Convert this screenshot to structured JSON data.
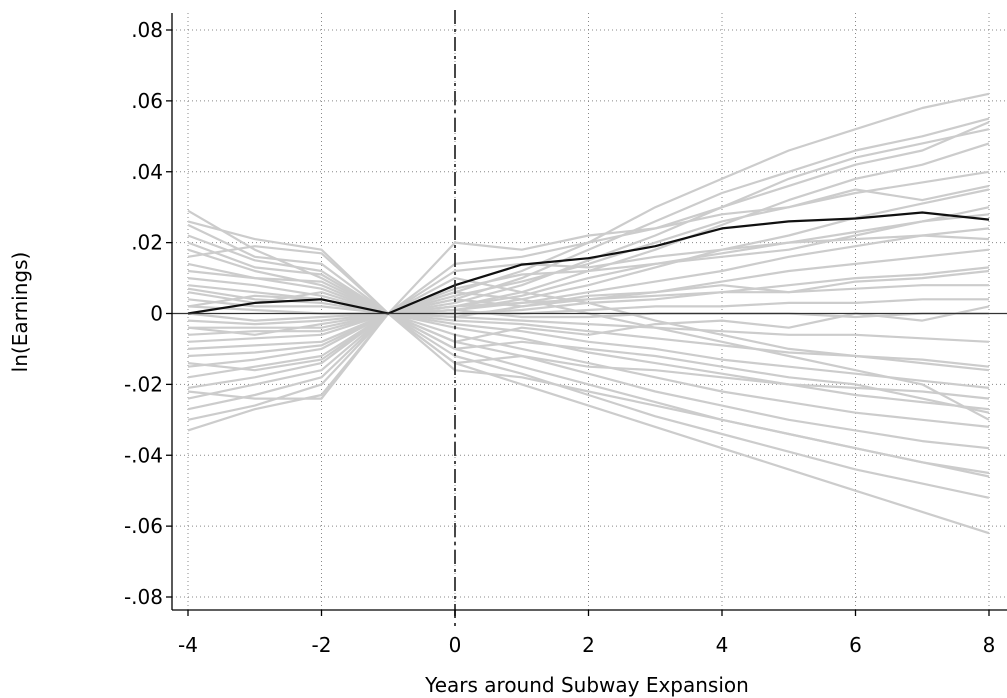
{
  "chart_data": {
    "type": "line",
    "title": "",
    "xlabel": "Years around Subway Expansion",
    "ylabel": "ln(Earnings)",
    "xlim": [
      -4,
      8
    ],
    "ylim": [
      -0.08,
      0.08
    ],
    "x_ticks": [
      -4,
      -2,
      0,
      2,
      4,
      6,
      8
    ],
    "x_tick_labels": [
      "-4",
      "-2",
      "0",
      "2",
      "4",
      "6",
      "8"
    ],
    "y_ticks": [
      0.08,
      0.06,
      0.04,
      0.02,
      0,
      -0.02,
      -0.04,
      -0.06,
      -0.08
    ],
    "y_tick_labels": [
      ".08",
      ".06",
      ".04",
      ".02",
      "0",
      "-.02",
      "-.04",
      "-.06",
      "-.08"
    ],
    "grid": true,
    "event_line_x": 0,
    "reference_line_y": 0,
    "x": [
      -4,
      -3,
      -2,
      -1,
      0,
      1,
      2,
      3,
      4,
      5,
      6,
      7,
      8
    ],
    "colors": {
      "main": "#111111",
      "placebo": "#cccccc",
      "grid": "#888888"
    },
    "series": [
      {
        "role": "main",
        "values": [
          0.0,
          0.003,
          0.004,
          0.0,
          0.008,
          0.0138,
          0.0156,
          0.019,
          0.024,
          0.026,
          0.0268,
          0.0285,
          0.0265
        ]
      },
      {
        "role": "placebo",
        "values": [
          0.029,
          0.018,
          0.01,
          0,
          0.006,
          0.012,
          0.02,
          0.03,
          0.038,
          0.046,
          0.052,
          0.058,
          0.062
        ]
      },
      {
        "role": "placebo",
        "values": [
          0.026,
          0.021,
          0.018,
          0,
          0.004,
          0.01,
          0.018,
          0.026,
          0.034,
          0.04,
          0.046,
          0.05,
          0.055
        ]
      },
      {
        "role": "placebo",
        "values": [
          0.022,
          0.015,
          0.012,
          0,
          0.003,
          0.008,
          0.015,
          0.022,
          0.03,
          0.038,
          0.044,
          0.048,
          0.052
        ]
      },
      {
        "role": "placebo",
        "values": [
          0.018,
          0.012,
          0.008,
          0,
          0.002,
          0.006,
          0.012,
          0.018,
          0.025,
          0.032,
          0.038,
          0.042,
          0.048
        ]
      },
      {
        "role": "placebo",
        "values": [
          0.014,
          0.01,
          0.007,
          0,
          0.005,
          0.009,
          0.014,
          0.02,
          0.026,
          0.03,
          0.034,
          0.037,
          0.04
        ]
      },
      {
        "role": "placebo",
        "values": [
          0.01,
          0.008,
          0.005,
          0,
          0.001,
          0.004,
          0.008,
          0.013,
          0.018,
          0.022,
          0.027,
          0.031,
          0.035
        ]
      },
      {
        "role": "placebo",
        "values": [
          0.007,
          0.004,
          0.003,
          0,
          0.002,
          0.005,
          0.01,
          0.014,
          0.017,
          0.02,
          0.023,
          0.026,
          0.03
        ]
      },
      {
        "role": "placebo",
        "values": [
          0.004,
          0.002,
          0.002,
          0,
          0.001,
          0.003,
          0.006,
          0.009,
          0.012,
          0.016,
          0.019,
          0.022,
          0.024
        ]
      },
      {
        "role": "placebo",
        "values": [
          0.002,
          0.001,
          0.0,
          0,
          -0.001,
          0.002,
          0.004,
          0.006,
          0.009,
          0.012,
          0.014,
          0.016,
          0.018
        ]
      },
      {
        "role": "placebo",
        "values": [
          0.0,
          -0.002,
          -0.001,
          0,
          0.0,
          0.001,
          0.003,
          0.004,
          0.006,
          0.008,
          0.01,
          0.011,
          0.013
        ]
      },
      {
        "role": "placebo",
        "values": [
          -0.002,
          -0.003,
          -0.002,
          0,
          0.002,
          0.003,
          0.004,
          0.005,
          0.006,
          0.006,
          0.007,
          0.008,
          0.008
        ]
      },
      {
        "role": "placebo",
        "values": [
          -0.004,
          -0.004,
          -0.004,
          0,
          0.0,
          0.0,
          0.001,
          0.002,
          0.002,
          0.003,
          0.003,
          0.004,
          0.004
        ]
      },
      {
        "role": "placebo",
        "values": [
          -0.006,
          -0.005,
          -0.005,
          0,
          0.001,
          -0.001,
          -0.001,
          0.0,
          0.0,
          0.0,
          -0.001,
          0.0,
          0.0
        ]
      },
      {
        "role": "placebo",
        "values": [
          -0.008,
          -0.007,
          -0.006,
          0,
          -0.001,
          -0.002,
          -0.003,
          -0.004,
          -0.005,
          -0.006,
          -0.006,
          -0.007,
          -0.008
        ]
      },
      {
        "role": "placebo",
        "values": [
          -0.01,
          -0.009,
          -0.008,
          0,
          -0.002,
          -0.003,
          -0.005,
          -0.007,
          -0.009,
          -0.011,
          -0.012,
          -0.013,
          -0.015
        ]
      },
      {
        "role": "placebo",
        "values": [
          -0.012,
          -0.011,
          -0.009,
          0,
          -0.003,
          -0.005,
          -0.008,
          -0.01,
          -0.013,
          -0.015,
          -0.017,
          -0.019,
          -0.021
        ]
      },
      {
        "role": "placebo",
        "values": [
          -0.015,
          -0.013,
          -0.01,
          0,
          -0.004,
          -0.007,
          -0.011,
          -0.014,
          -0.017,
          -0.02,
          -0.023,
          -0.025,
          -0.027
        ]
      },
      {
        "role": "placebo",
        "values": [
          -0.018,
          -0.015,
          -0.012,
          0,
          -0.006,
          -0.01,
          -0.014,
          -0.018,
          -0.022,
          -0.025,
          -0.028,
          -0.03,
          -0.032
        ]
      },
      {
        "role": "placebo",
        "values": [
          -0.021,
          -0.018,
          -0.014,
          0,
          -0.008,
          -0.012,
          -0.017,
          -0.022,
          -0.026,
          -0.03,
          -0.033,
          -0.036,
          -0.038
        ]
      },
      {
        "role": "placebo",
        "values": [
          -0.024,
          -0.02,
          -0.016,
          0,
          -0.01,
          -0.015,
          -0.02,
          -0.025,
          -0.03,
          -0.034,
          -0.038,
          -0.042,
          -0.045
        ]
      },
      {
        "role": "placebo",
        "values": [
          -0.027,
          -0.023,
          -0.018,
          0,
          -0.012,
          -0.017,
          -0.023,
          -0.029,
          -0.034,
          -0.039,
          -0.044,
          -0.048,
          -0.052
        ]
      },
      {
        "role": "placebo",
        "values": [
          -0.03,
          -0.026,
          -0.02,
          0,
          -0.014,
          -0.02,
          -0.026,
          -0.032,
          -0.038,
          -0.044,
          -0.05,
          -0.056,
          -0.062
        ]
      },
      {
        "role": "placebo",
        "values": [
          -0.033,
          -0.027,
          -0.023,
          0,
          -0.016,
          -0.018,
          -0.022,
          -0.026,
          -0.03,
          -0.034,
          -0.038,
          -0.042,
          -0.046
        ]
      },
      {
        "role": "placebo",
        "values": [
          0.025,
          0.016,
          0.014,
          0,
          0.02,
          0.018,
          0.022,
          0.024,
          0.028,
          0.03,
          0.035,
          0.032,
          0.036
        ]
      },
      {
        "role": "placebo",
        "values": [
          0.02,
          0.013,
          0.011,
          0,
          0.012,
          0.014,
          0.013,
          0.016,
          0.018,
          0.02,
          0.021,
          0.022,
          0.021
        ]
      },
      {
        "role": "placebo",
        "values": [
          0.012,
          0.01,
          0.009,
          0,
          -0.008,
          -0.004,
          -0.006,
          -0.003,
          -0.002,
          -0.004,
          0.0,
          -0.002,
          0.002
        ]
      },
      {
        "role": "placebo",
        "values": [
          0.006,
          0.003,
          0.006,
          0,
          -0.014,
          -0.012,
          -0.015,
          -0.016,
          -0.018,
          -0.02,
          -0.021,
          -0.022,
          -0.024
        ]
      },
      {
        "role": "placebo",
        "values": [
          -0.014,
          -0.016,
          -0.013,
          0,
          0.01,
          0.006,
          0.003,
          -0.002,
          -0.006,
          -0.01,
          -0.012,
          -0.014,
          -0.016
        ]
      },
      {
        "role": "placebo",
        "values": [
          -0.022,
          -0.024,
          -0.024,
          0,
          0.006,
          0.004,
          0.0,
          -0.004,
          -0.008,
          -0.012,
          -0.016,
          -0.02,
          -0.03
        ]
      },
      {
        "role": "placebo",
        "values": [
          0.016,
          0.019,
          0.017,
          0,
          0.014,
          0.016,
          0.02,
          0.024,
          0.03,
          0.036,
          0.042,
          0.046,
          0.054
        ]
      },
      {
        "role": "placebo",
        "values": [
          0.008,
          0.006,
          0.004,
          0,
          0.004,
          0.002,
          0.005,
          0.006,
          0.008,
          0.006,
          0.009,
          0.01,
          0.012
        ]
      },
      {
        "role": "placebo",
        "values": [
          -0.004,
          -0.006,
          -0.003,
          0,
          -0.01,
          -0.008,
          -0.01,
          -0.012,
          -0.015,
          -0.018,
          -0.02,
          -0.024,
          -0.028
        ]
      },
      {
        "role": "placebo",
        "values": [
          0.002,
          0.005,
          0.004,
          0,
          0.007,
          0.011,
          0.012,
          0.014,
          0.016,
          0.018,
          0.022,
          0.026,
          0.028
        ]
      }
    ]
  }
}
